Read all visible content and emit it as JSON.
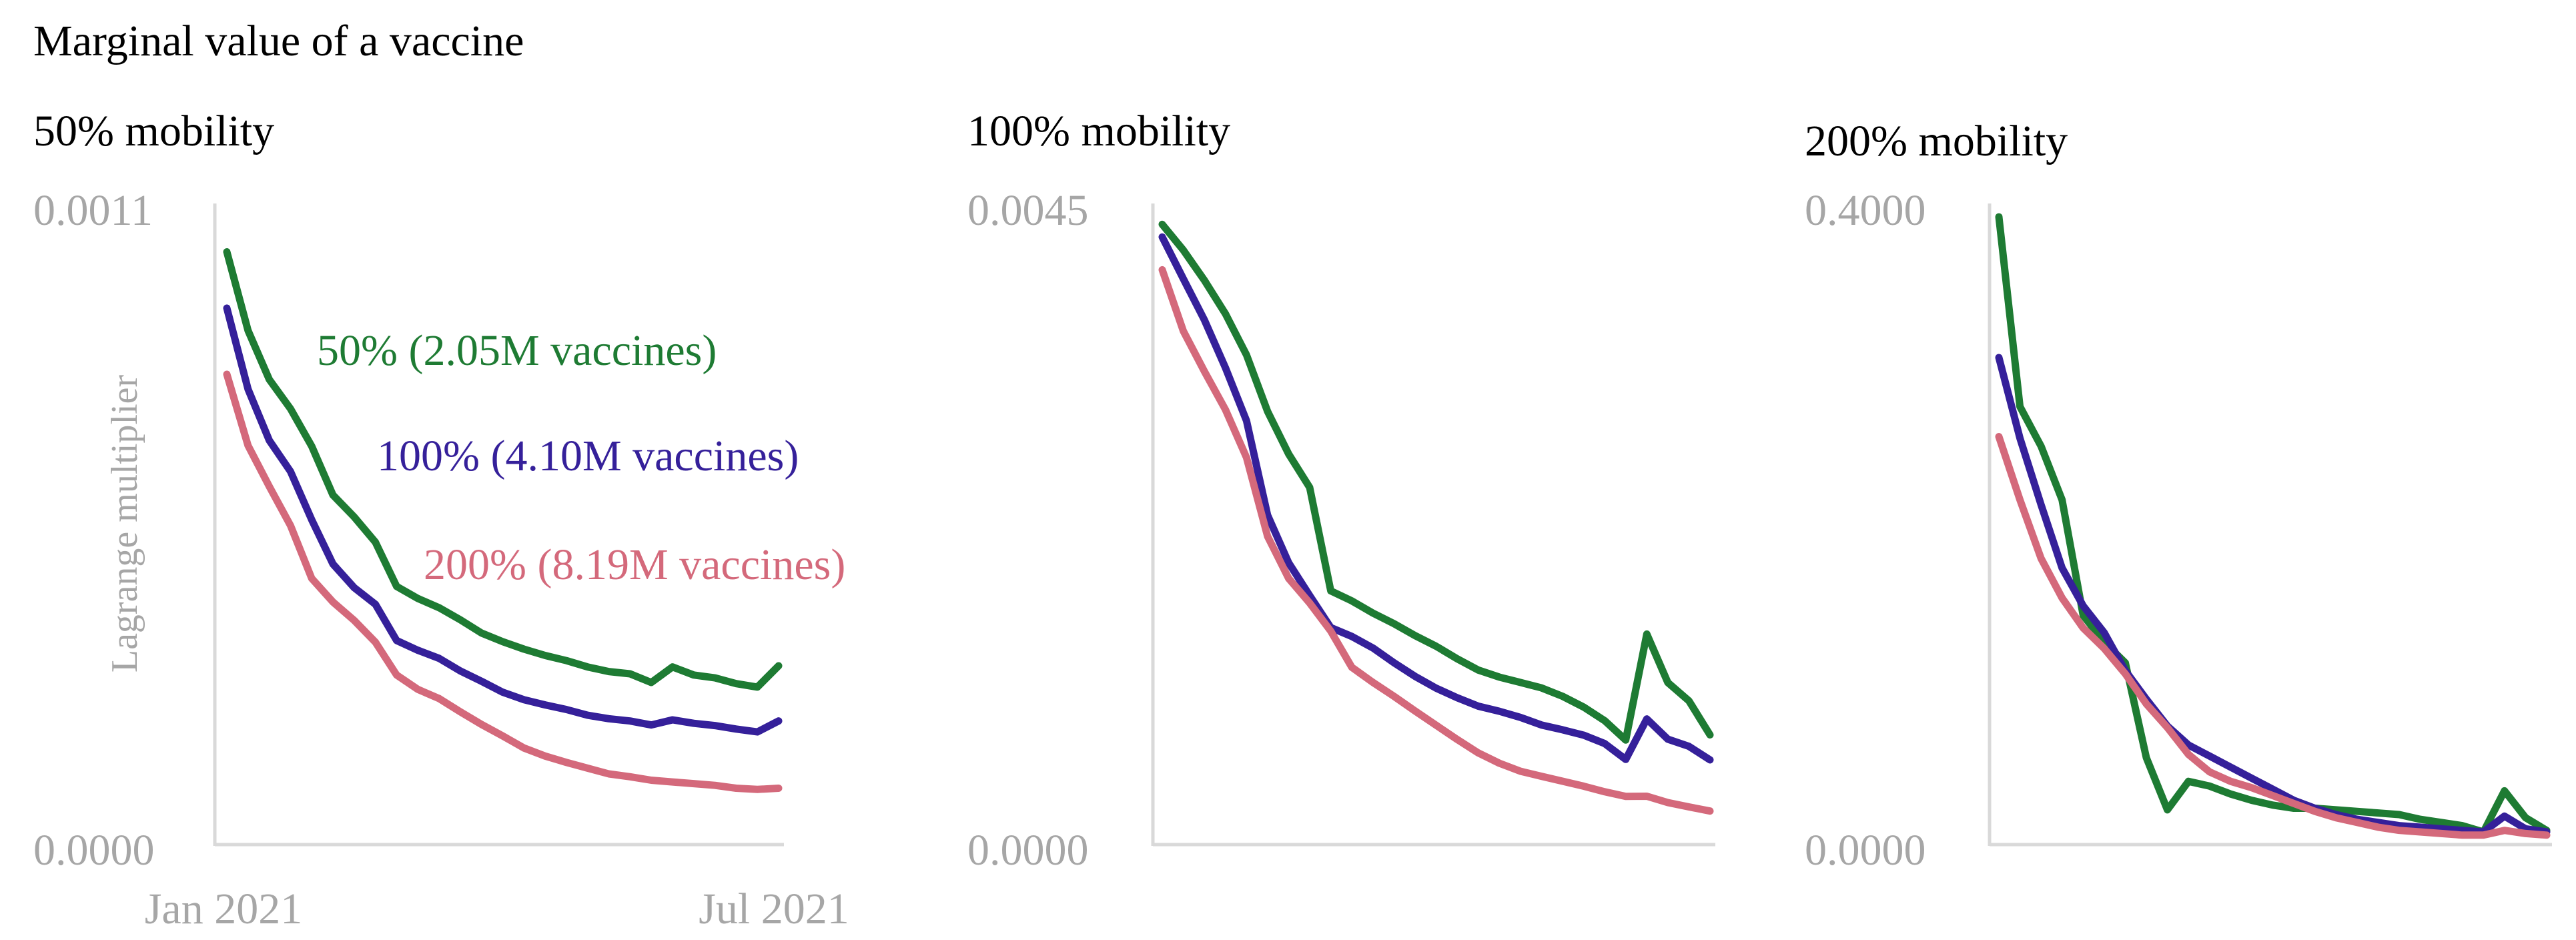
{
  "figure_title": "Marginal value of a vaccine",
  "colors": {
    "green": "#1e7b33",
    "purple": "#35209a",
    "pink": "#d4697b",
    "axis": "#d9d9d9",
    "tick_text": "#a6a6a6",
    "title_text": "#000000"
  },
  "chart_data": [
    {
      "type": "line",
      "title": "50% mobility",
      "ylabel": "Lagrange multiplier",
      "ylim": [
        0,
        0.0011
      ],
      "y_tick_labels": [
        "0.0011",
        "0.0000"
      ],
      "x_tick_labels": [
        "Jan 2021",
        "Jul 2021"
      ],
      "x": [
        1,
        2,
        3,
        4,
        5,
        6,
        7,
        8,
        9,
        10,
        11,
        12,
        13,
        14,
        15,
        16,
        17,
        18,
        19,
        20,
        21,
        22,
        23,
        24,
        25,
        26,
        27
      ],
      "series": [
        {
          "name": "50% (2.05M vaccines)",
          "color": "#1e7b33",
          "values": [
            0.001031,
            0.000894,
            0.000809,
            0.000758,
            0.000693,
            0.000608,
            0.00057,
            0.000526,
            0.000449,
            0.000428,
            0.000412,
            0.000391,
            0.000368,
            0.000353,
            0.00034,
            0.000329,
            0.00032,
            0.000309,
            0.000301,
            0.000297,
            0.000282,
            0.000309,
            0.000295,
            0.00029,
            0.00028,
            0.000274,
            0.000311
          ]
        },
        {
          "name": "100% (4.10M vaccines)",
          "color": "#35209a",
          "values": [
            0.000933,
            0.000792,
            0.000703,
            0.000649,
            0.000565,
            0.000488,
            0.000447,
            0.000418,
            0.000355,
            0.000338,
            0.000324,
            0.000302,
            0.000284,
            0.000265,
            0.000252,
            0.000243,
            0.000235,
            0.000225,
            0.000219,
            0.000215,
            0.000208,
            0.000217,
            0.000211,
            0.000207,
            0.000201,
            0.000196,
            0.000215
          ]
        },
        {
          "name": "200% (8.19M vaccines)",
          "color": "#d4697b",
          "values": [
            0.000818,
            0.000694,
            0.000623,
            0.000555,
            0.000463,
            0.000422,
            0.00039,
            0.000352,
            0.000295,
            0.00027,
            0.000254,
            0.000231,
            0.000209,
            0.000189,
            0.000168,
            0.000154,
            0.000143,
            0.000133,
            0.000123,
            0.000118,
            0.000112,
            0.000109,
            0.000106,
            0.000103,
            9.8e-05,
            9.6e-05,
            9.8e-05
          ]
        }
      ]
    },
    {
      "type": "line",
      "title": "100% mobility",
      "ylim": [
        0,
        0.0045
      ],
      "y_tick_labels": [
        "0.0045",
        "0.0000"
      ],
      "x": [
        1,
        2,
        3,
        4,
        5,
        6,
        7,
        8,
        9,
        10,
        11,
        12,
        13,
        14,
        15,
        16,
        17,
        18,
        19,
        20,
        21,
        22,
        23,
        24,
        25,
        26,
        27
      ],
      "series": [
        {
          "name": "50%",
          "color": "#1e7b33",
          "values": [
            0.004413,
            0.00423,
            0.004015,
            0.003777,
            0.003484,
            0.003082,
            0.002779,
            0.002541,
            0.001805,
            0.001734,
            0.001647,
            0.001572,
            0.001487,
            0.001411,
            0.001322,
            0.001242,
            0.001192,
            0.001154,
            0.001115,
            0.001055,
            0.000979,
            0.000882,
            0.000744,
            0.001498,
            0.001153,
            0.001023,
            0.000781
          ]
        },
        {
          "name": "100%",
          "color": "#35209a",
          "values": [
            0.004323,
            0.004026,
            0.003733,
            0.003393,
            0.003016,
            0.002344,
            0.002005,
            0.001772,
            0.001544,
            0.001481,
            0.001399,
            0.001294,
            0.001197,
            0.001113,
            0.001045,
            0.000985,
            0.000949,
            0.000905,
            0.000851,
            0.000817,
            0.000779,
            0.000719,
            0.000606,
            0.000894,
            0.00075,
            0.000699,
            0.000603
          ]
        },
        {
          "name": "200%",
          "color": "#d4697b",
          "values": [
            0.00409,
            0.003654,
            0.003367,
            0.003095,
            0.002754,
            0.002193,
            0.001894,
            0.001719,
            0.001519,
            0.001261,
            0.001154,
            0.001055,
            0.000951,
            0.000849,
            0.000748,
            0.000652,
            0.000579,
            0.000522,
            0.000486,
            0.000451,
            0.000416,
            0.000376,
            0.000343,
            0.000344,
            0.000299,
            0.000268,
            0.000239
          ]
        }
      ]
    },
    {
      "type": "line",
      "title": "200% mobility",
      "ylim": [
        0,
        0.4
      ],
      "y_tick_labels": [
        "0.4000",
        "0.0000"
      ],
      "x": [
        1,
        2,
        3,
        4,
        5,
        6,
        7,
        8,
        9,
        10,
        11,
        12,
        13,
        14,
        15,
        16,
        17,
        18,
        19,
        20,
        21,
        22,
        23,
        24,
        25,
        26,
        27
      ],
      "series": [
        {
          "name": "50%",
          "color": "#1e7b33",
          "values": [
            0.397,
            0.277,
            0.252,
            0.218,
            0.145,
            0.128,
            0.115,
            0.055,
            0.022,
            0.04,
            0.037,
            0.032,
            0.028,
            0.025,
            0.023,
            0.023,
            0.022,
            0.021,
            0.02,
            0.019,
            0.016,
            0.014,
            0.012,
            0.008,
            0.034,
            0.017,
            0.009
          ]
        },
        {
          "name": "100%",
          "color": "#35209a",
          "values": [
            0.308,
            0.257,
            0.215,
            0.175,
            0.151,
            0.134,
            0.11,
            0.092,
            0.075,
            0.063,
            0.056,
            0.049,
            0.042,
            0.035,
            0.028,
            0.023,
            0.019,
            0.016,
            0.014,
            0.012,
            0.011,
            0.01,
            0.009,
            0.008,
            0.018,
            0.01,
            0.008
          ]
        },
        {
          "name": "200%",
          "color": "#d4697b",
          "values": [
            0.258,
            0.218,
            0.181,
            0.156,
            0.137,
            0.124,
            0.108,
            0.089,
            0.074,
            0.057,
            0.046,
            0.04,
            0.036,
            0.031,
            0.026,
            0.021,
            0.017,
            0.014,
            0.011,
            0.009,
            0.008,
            0.007,
            0.006,
            0.006,
            0.009,
            0.007,
            0.006
          ]
        }
      ]
    }
  ]
}
